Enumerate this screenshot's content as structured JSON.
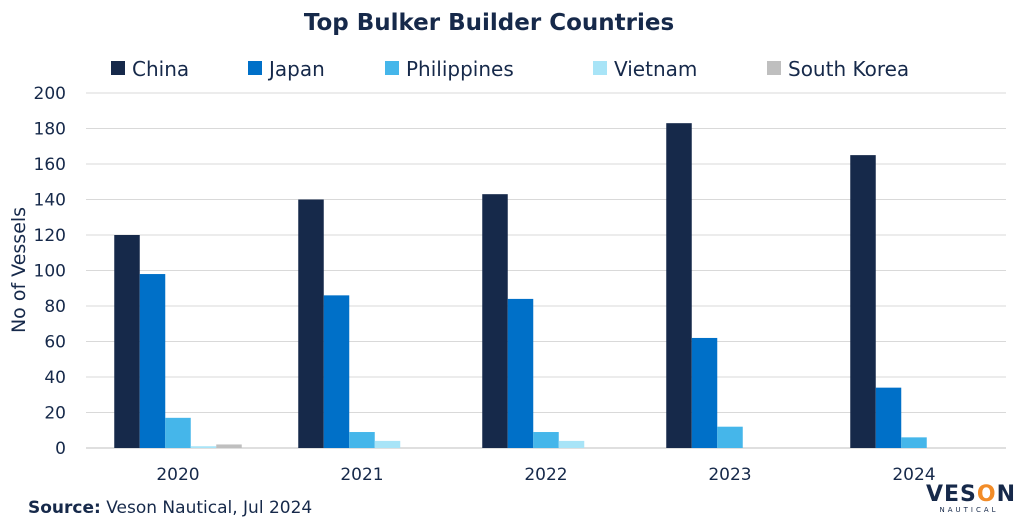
{
  "chart_data": {
    "type": "bar",
    "title": "Top Bulker Builder Countries",
    "ylabel": "No of Vessels",
    "xlabel": "",
    "categories": [
      "2020",
      "2021",
      "2022",
      "2023",
      "2024"
    ],
    "ylim": [
      0,
      200
    ],
    "yticks": [
      0,
      20,
      40,
      60,
      80,
      100,
      120,
      140,
      160,
      180,
      200
    ],
    "grid": true,
    "legend_position": "top",
    "series": [
      {
        "name": "China",
        "color": "#16294a",
        "values": [
          120,
          140,
          143,
          183,
          165
        ]
      },
      {
        "name": "Japan",
        "color": "#0070c8",
        "values": [
          98,
          86,
          84,
          62,
          34
        ]
      },
      {
        "name": "Philippines",
        "color": "#45b6ea",
        "values": [
          17,
          9,
          9,
          12,
          6
        ]
      },
      {
        "name": "Vietnam",
        "color": "#a8e4f7",
        "values": [
          1,
          4,
          4,
          0,
          0
        ]
      },
      {
        "name": "South Korea",
        "color": "#bfbfbf",
        "values": [
          2,
          0,
          0,
          0,
          0
        ]
      }
    ]
  },
  "source": {
    "label": "Source:",
    "text": " Veson Nautical, Jul 2024"
  },
  "logo": {
    "main_a": "VES",
    "main_o": "O",
    "main_b": "N",
    "sub": "NAUTICAL"
  }
}
